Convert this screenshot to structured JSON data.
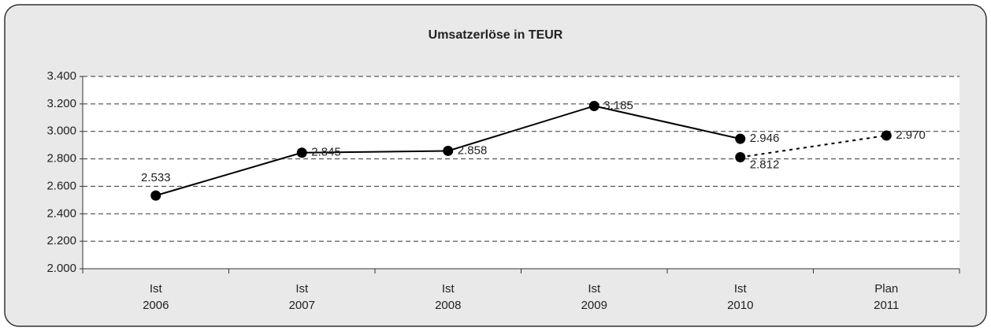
{
  "chart_data": {
    "type": "line",
    "title": "Umsatzerlöse in TEUR",
    "categories": [
      [
        "Ist",
        "2006"
      ],
      [
        "Ist",
        "2007"
      ],
      [
        "Ist",
        "2008"
      ],
      [
        "Ist",
        "2009"
      ],
      [
        "Ist",
        "2010"
      ],
      [
        "Plan",
        "2011"
      ]
    ],
    "series": [
      {
        "color": "#000000",
        "dash": false,
        "values": [
          2533,
          2845,
          2858,
          3185,
          2946,
          null
        ],
        "value_labels": [
          "2.533",
          "2.845",
          "2.858",
          "3.185",
          "2.946",
          null
        ]
      },
      {
        "color": "#000000",
        "dash": true,
        "values": [
          null,
          null,
          null,
          null,
          2812,
          2970
        ],
        "value_labels": [
          null,
          null,
          null,
          null,
          "2.812",
          "2.970"
        ]
      }
    ],
    "ylim": [
      2000,
      3400
    ],
    "yticks": [
      {
        "value": 2000,
        "label": "2.000"
      },
      {
        "value": 2200,
        "label": "2.200"
      },
      {
        "value": 2400,
        "label": "2.400"
      },
      {
        "value": 2600,
        "label": "2.600"
      },
      {
        "value": 2800,
        "label": "2.800"
      },
      {
        "value": 3000,
        "label": "3.000"
      },
      {
        "value": 3200,
        "label": "3.200"
      },
      {
        "value": 3400,
        "label": "3.400"
      }
    ],
    "grid": true
  }
}
